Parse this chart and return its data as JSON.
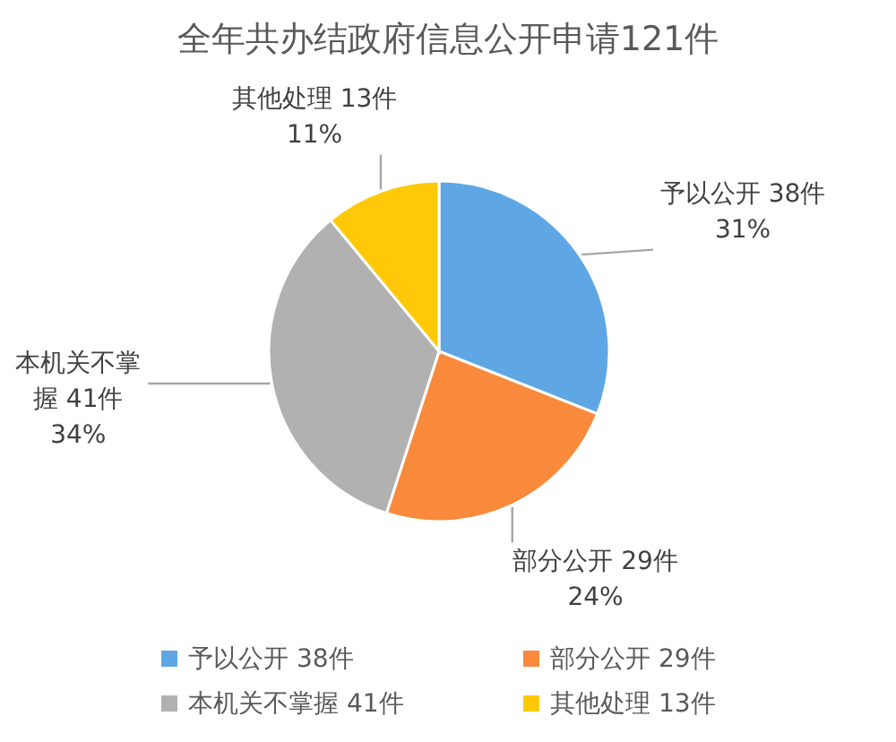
{
  "chart_data": {
    "type": "pie",
    "title": "全年共办结政府信息公开申请121件",
    "categories": [
      "予以公开 38件",
      "部分公开 29件",
      "本机关不掌握 41件",
      "其他处理 13件"
    ],
    "values": [
      31,
      24,
      34,
      11
    ],
    "colors": [
      "#5ea7e4",
      "#f98a3b",
      "#b1b1b1",
      "#ffc90a"
    ],
    "value_labels": [
      "31%",
      "24%",
      "34%",
      "11%"
    ],
    "legend": "bottom"
  }
}
